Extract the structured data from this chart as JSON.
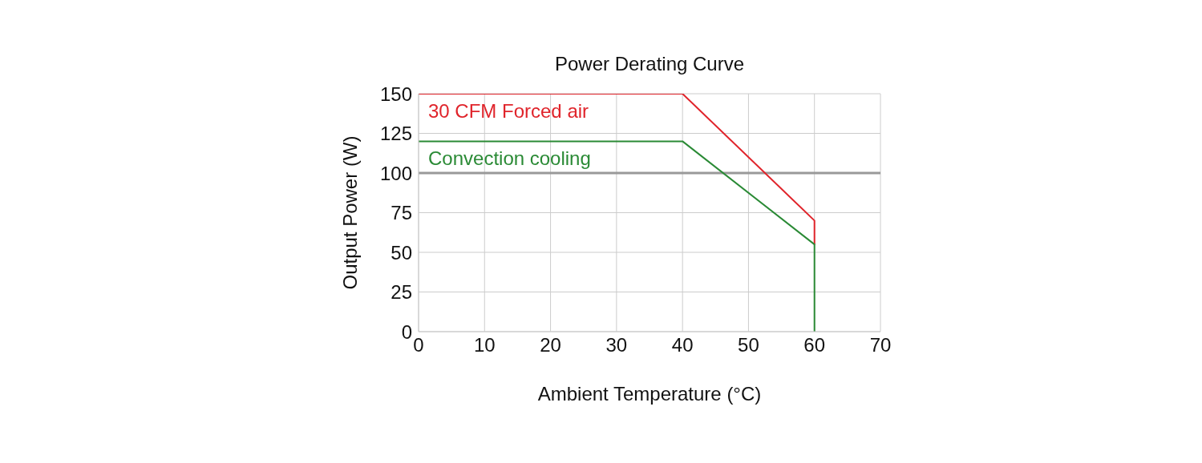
{
  "chart_data": {
    "type": "line",
    "title": "Power Derating Curve",
    "xlabel": "Ambient Temperature (°C)",
    "ylabel": "Output Power (W)",
    "series": [
      {
        "name": "30 CFM Forced air",
        "color": "#e0242b",
        "x": [
          0,
          40,
          60,
          60
        ],
        "values": [
          150,
          150,
          70,
          55
        ]
      },
      {
        "name": "Convection cooling",
        "color": "#2a8a35",
        "x": [
          0,
          40,
          60,
          60
        ],
        "values": [
          120,
          120,
          55,
          0
        ]
      }
    ],
    "xlim": [
      0,
      70
    ],
    "xticks": [
      0,
      10,
      20,
      30,
      40,
      50,
      60,
      70
    ],
    "ylim": [
      0,
      150
    ],
    "yticks": [
      0,
      25,
      50,
      75,
      100,
      125,
      150
    ],
    "ref_lines": [
      {
        "axis": "y",
        "value": 100,
        "color": "#999999"
      }
    ],
    "grid": true,
    "legend": false,
    "marker": "none",
    "line_style": "solid"
  }
}
